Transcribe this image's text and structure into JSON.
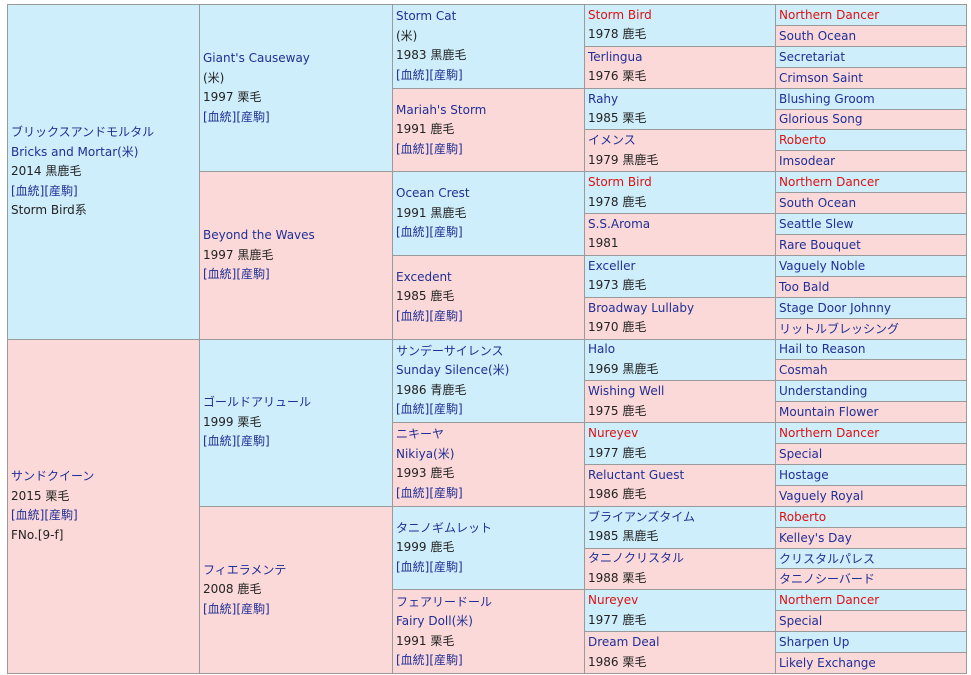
{
  "links": {
    "pedigree": "[血統]",
    "farm": "[産駒]"
  },
  "subject": {
    "sire": {
      "name_jp": "ブリックスアンドモルタル",
      "name_en": "Bricks and Mortar(米)",
      "info": "2014 黒鹿毛",
      "line": "Storm Bird系"
    },
    "dam": {
      "name_jp": "サンドクイーン",
      "info": "2015 栗毛",
      "family": "FNo.[9-f]"
    }
  },
  "gen2": {
    "sire_sire": {
      "name": "Giant's Causeway",
      "origin": "(米)",
      "info": "1997 栗毛"
    },
    "sire_dam": {
      "name": "Beyond the Waves",
      "info": "1997 黒鹿毛"
    },
    "dam_sire": {
      "name": "ゴールドアリュール",
      "info": "1999 栗毛"
    },
    "dam_dam": {
      "name": "フィエラメンテ",
      "info": "2008 鹿毛"
    }
  },
  "gen3": [
    {
      "name": "Storm Cat",
      "origin": "(米)",
      "info": "1983 黒鹿毛"
    },
    {
      "name": "Mariah's Storm",
      "info": "1991 鹿毛"
    },
    {
      "name": "Ocean Crest",
      "info": "1991 黒鹿毛"
    },
    {
      "name": "Excedent",
      "info": "1985 鹿毛"
    },
    {
      "name": "サンデーサイレンス",
      "name2": "Sunday Silence(米)",
      "info": "1986 青鹿毛"
    },
    {
      "name": "ニキーヤ",
      "name2": "Nikiya(米)",
      "info": "1993 鹿毛"
    },
    {
      "name": "タニノギムレット",
      "info": "1999 鹿毛"
    },
    {
      "name": "フェアリードール",
      "name2": "Fairy Doll(米)",
      "info": "1991 栗毛"
    }
  ],
  "gen4": [
    {
      "name": "Storm Bird",
      "info": "1978 鹿毛"
    },
    {
      "name": "Terlingua",
      "info": "1976 栗毛"
    },
    {
      "name": "Rahy",
      "info": "1985 栗毛"
    },
    {
      "name": "イメンス",
      "info": "1979 黒鹿毛"
    },
    {
      "name": "Storm Bird",
      "info": "1978 鹿毛"
    },
    {
      "name": "S.S.Aroma",
      "info": "1981"
    },
    {
      "name": "Exceller",
      "info": "1973 鹿毛"
    },
    {
      "name": "Broadway Lullaby",
      "info": "1970 鹿毛"
    },
    {
      "name": "Halo",
      "info": "1969 黒鹿毛"
    },
    {
      "name": "Wishing Well",
      "info": "1975 鹿毛"
    },
    {
      "name": "Nureyev",
      "info": "1977 鹿毛"
    },
    {
      "name": "Reluctant Guest",
      "info": "1986 鹿毛"
    },
    {
      "name": "ブライアンズタイム",
      "info": "1985 黒鹿毛"
    },
    {
      "name": "タニノクリスタル",
      "info": "1988 栗毛"
    },
    {
      "name": "Nureyev",
      "info": "1977 鹿毛"
    },
    {
      "name": "Dream Deal",
      "info": "1986 栗毛"
    }
  ],
  "gen5": [
    "Northern Dancer",
    "South Ocean",
    "Secretariat",
    "Crimson Saint",
    "Blushing Groom",
    "Glorious Song",
    "Roberto",
    "Imsodear",
    "Northern Dancer",
    "South Ocean",
    "Seattle Slew",
    "Rare Bouquet",
    "Vaguely Noble",
    "Too Bald",
    "Stage Door Johnny",
    "リットルブレッシング",
    "Hail to Reason",
    "Cosmah",
    "Understanding",
    "Mountain Flower",
    "Northern Dancer",
    "Special",
    "Hostage",
    "Vaguely Royal",
    "Roberto",
    "Kelley's Day",
    "クリスタルパレス",
    "タニノシーバード",
    "Northern Dancer",
    "Special",
    "Sharpen Up",
    "Likely Exchange"
  ],
  "highlight_color": "#dd1111",
  "colors": {
    "male_bg": "#cfeefb",
    "female_bg": "#fcd9d9",
    "link": "#1f2f95"
  }
}
